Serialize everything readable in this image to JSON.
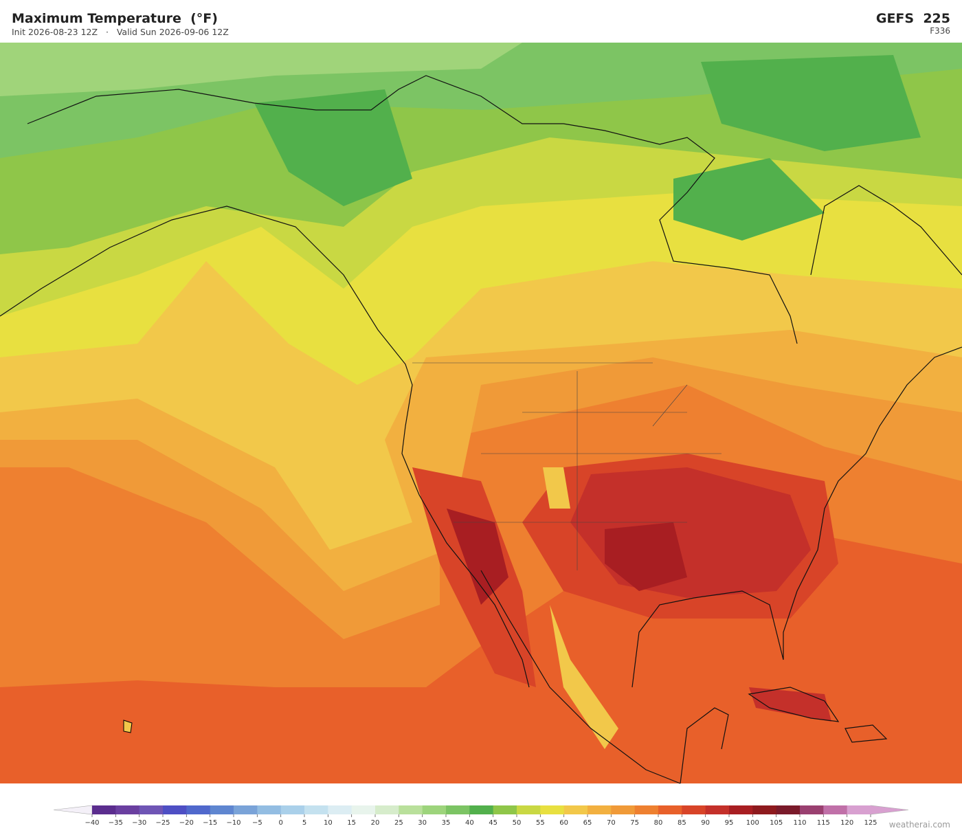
{
  "header": {
    "title": "Maximum Temperature  (°F)",
    "subtitle": "Init 2026-08-23 12Z   ·   Valid Sun 2026-09-06 12Z",
    "model": "GEFS  225",
    "forecast_hour": "F336"
  },
  "colorbar": {
    "ticks": [
      "−40",
      "−35",
      "−30",
      "−25",
      "−20",
      "−15",
      "−10",
      "−5",
      "0",
      "5",
      "10",
      "15",
      "20",
      "25",
      "30",
      "35",
      "40",
      "45",
      "50",
      "55",
      "60",
      "65",
      "70",
      "75",
      "80",
      "85",
      "90",
      "95",
      "100",
      "105",
      "110",
      "115",
      "120",
      "125"
    ],
    "colors": [
      "#5b2d8e",
      "#6a3fa0",
      "#6f55b5",
      "#4e4fc4",
      "#5068cc",
      "#5f86d0",
      "#7aa3d8",
      "#93bde2",
      "#aad0ea",
      "#c4e1ef",
      "#dcedf3",
      "#e8f4ec",
      "#d6eccb",
      "#b9e09b",
      "#9dd47c",
      "#7cc464",
      "#52b04c",
      "#8fc649",
      "#c9d843",
      "#e8e040",
      "#f2c84a",
      "#f2b040",
      "#f09a38",
      "#ee8030",
      "#e8602a",
      "#d84428",
      "#c4302a",
      "#a81e22",
      "#8e1a1e",
      "#7a1a2a",
      "#9a4070",
      "#c070a8",
      "#d8a0d0"
    ],
    "under_color": "#f4f0f8",
    "over_color": "#d8a0d0"
  },
  "footer": {
    "watermark": "weatherai.com"
  }
}
